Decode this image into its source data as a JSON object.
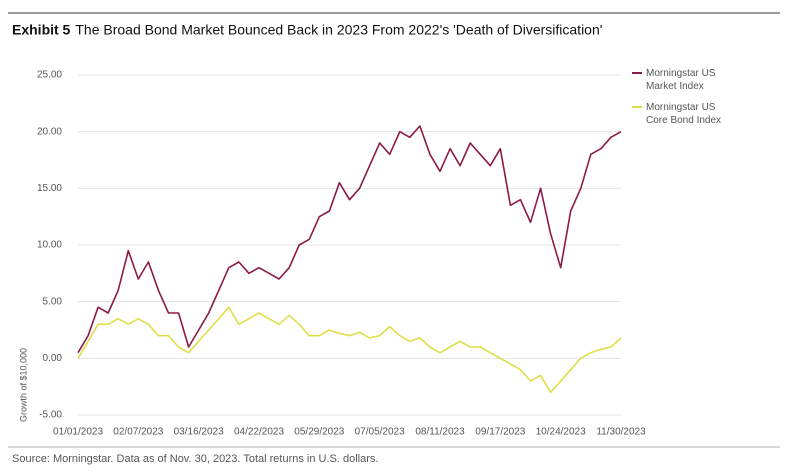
{
  "chart_data": {
    "type": "line",
    "exhibit": "Exhibit 5",
    "title": "The Broad Bond Market Bounced Back in 2023 From 2022's 'Death of Diversification'",
    "ylabel": "Growth of $10,000",
    "source": "Source: Morningstar. Data as of Nov. 30, 2023. Total returns in U.S. dollars.",
    "categories": [
      "01/01/2023",
      null,
      null,
      null,
      null,
      null,
      "02/07/2023",
      null,
      null,
      null,
      null,
      null,
      "03/16/2023",
      null,
      null,
      null,
      null,
      null,
      "04/22/2023",
      null,
      null,
      null,
      null,
      null,
      "05/29/2023",
      null,
      null,
      null,
      null,
      null,
      "07/05/2023",
      null,
      null,
      null,
      null,
      null,
      "08/11/2023",
      null,
      null,
      null,
      null,
      null,
      "09/17/2023",
      null,
      null,
      null,
      null,
      null,
      "10/24/2023",
      null,
      null,
      null,
      null,
      null,
      "11/30/2023"
    ],
    "series": [
      {
        "name": "Morningstar US Market Index",
        "color": "#8b1a4a",
        "values": [
          0.5,
          2,
          4.5,
          4,
          6,
          9.5,
          7,
          8.5,
          6,
          4,
          4,
          1,
          2.5,
          4,
          6,
          8,
          8.5,
          7.5,
          8,
          7.5,
          7,
          8,
          10,
          10.5,
          12.5,
          13,
          15.5,
          14,
          15,
          17,
          19,
          18,
          20,
          19.5,
          20.5,
          18,
          16.5,
          18.5,
          17,
          19,
          18,
          17,
          18.5,
          13.5,
          14,
          12,
          15,
          11,
          8,
          13,
          15,
          18,
          18.5,
          19.5,
          20
        ]
      },
      {
        "name": "Morningstar US Core Bond Index",
        "color": "#dede4a",
        "values": [
          0,
          1.5,
          3,
          3,
          3.5,
          3,
          3.5,
          3,
          2,
          2,
          1,
          0.5,
          1.5,
          2.5,
          3.5,
          4.5,
          3,
          3.5,
          4,
          3.5,
          3,
          3.8,
          3,
          2,
          2,
          2.5,
          2.2,
          2,
          2.3,
          1.8,
          2,
          2.8,
          2,
          1.5,
          1.8,
          1,
          0.5,
          1,
          1.5,
          1,
          1,
          0.5,
          0,
          -0.5,
          -1,
          -2,
          -1.5,
          -3,
          -2,
          -1,
          0,
          0.5,
          0.8,
          1,
          1.8
        ]
      }
    ],
    "ylim": [
      -5,
      25
    ],
    "yticks": [
      {
        "value": -5,
        "label": "-5.00"
      },
      {
        "value": 0,
        "label": "0.00"
      },
      {
        "value": 5,
        "label": "5.00"
      },
      {
        "value": 10,
        "label": "10.00"
      },
      {
        "value": 15,
        "label": "15.00"
      },
      {
        "value": 20,
        "label": "20.00"
      },
      {
        "value": 25,
        "label": "25.00"
      }
    ],
    "grid": true,
    "legend": "right"
  }
}
